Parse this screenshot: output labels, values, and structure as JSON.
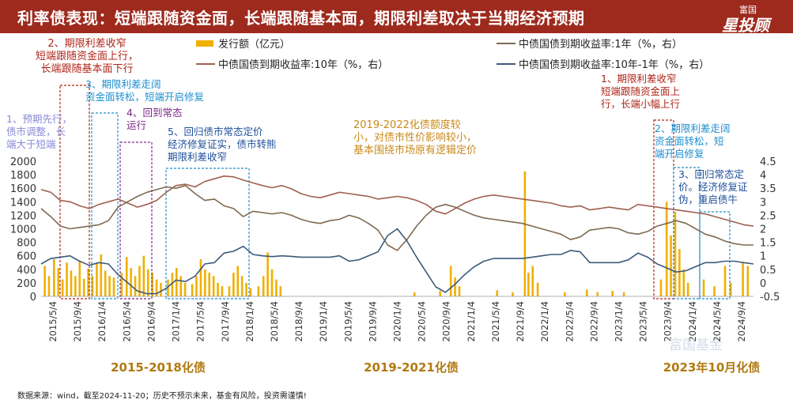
{
  "header": {
    "title": "利率债表现：短端跟随资金面，长端跟随基本面，期限利差取决于当期经济预期",
    "logo_top": "富国",
    "logo_main": "星投顾"
  },
  "source": "数据来源：wind，截至2024-11-20；历史不预示未来，基金有风险，投资需谨慎!",
  "chart_data": {
    "type": "bar+line",
    "legend": [
      {
        "name": "发行额（亿元）",
        "color": "#f0b000",
        "kind": "bar"
      },
      {
        "name": "中债国债到期收益率:1年（%，右）",
        "color": "#7f6a52",
        "kind": "line"
      },
      {
        "name": "中债国债到期收益率:10年（%，右）",
        "color": "#a06050",
        "kind": "line"
      },
      {
        "name": "中债国债到期收益率:10年-1年（%，右）",
        "color": "#3c5a7a",
        "kind": "line"
      }
    ],
    "x_ticks": [
      "2015/5/4",
      "2015/9/4",
      "2016/1/4",
      "2016/5/4",
      "2016/9/4",
      "2017/1/4",
      "2017/5/4",
      "2017/9/4",
      "2018/1/4",
      "2018/5/4",
      "2018/9/4",
      "2019/1/4",
      "2019/5/4",
      "2019/9/4",
      "2020/1/4",
      "2020/5/4",
      "2020/9/4",
      "2021/1/4",
      "2021/5/4",
      "2021/9/4",
      "2022/1/4",
      "2022/5/4",
      "2022/9/4",
      "2023/1/4",
      "2023/5/4",
      "2023/9/4",
      "2024/1/4",
      "2024/5/4",
      "2024/9/4"
    ],
    "y_left": {
      "min": 0,
      "max": 2000,
      "ticks": [
        0,
        200,
        400,
        600,
        800,
        1000,
        1200,
        1400,
        1600,
        1800,
        2000
      ]
    },
    "y_right": {
      "min": -0.5,
      "max": 4.5,
      "ticks": [
        "-0.5",
        "0",
        "0.5",
        "1",
        "1.5",
        "2",
        "2.5",
        "3",
        "3.5",
        "4",
        "4.5"
      ]
    },
    "series": {
      "y10": [
        3.45,
        3.35,
        3.05,
        3.0,
        2.85,
        2.75,
        2.9,
        3.0,
        3.1,
        2.95,
        2.8,
        2.9,
        3.05,
        3.35,
        3.6,
        3.65,
        3.55,
        3.75,
        3.85,
        3.95,
        3.92,
        3.8,
        3.7,
        3.6,
        3.52,
        3.6,
        3.48,
        3.3,
        3.2,
        3.15,
        3.25,
        3.35,
        3.3,
        3.25,
        3.2,
        3.1,
        3.15,
        3.2,
        3.15,
        3.05,
        2.9,
        2.65,
        2.55,
        2.75,
        2.95,
        3.1,
        3.2,
        3.25,
        3.2,
        3.15,
        3.1,
        3.05,
        3.0,
        2.95,
        2.85,
        2.8,
        2.85,
        2.7,
        2.75,
        2.8,
        2.75,
        2.7,
        2.9,
        2.85,
        2.8,
        2.75,
        2.7,
        2.65,
        2.6,
        2.55,
        2.45,
        2.35,
        2.25,
        2.15,
        2.1
      ],
      "y1": [
        2.75,
        2.45,
        2.1,
        2.0,
        2.05,
        2.1,
        2.15,
        2.3,
        2.8,
        3.0,
        3.2,
        3.35,
        3.45,
        3.55,
        3.5,
        3.6,
        3.3,
        3.05,
        3.1,
        2.85,
        2.75,
        2.45,
        2.65,
        2.6,
        2.55,
        2.6,
        2.5,
        2.35,
        2.25,
        2.2,
        2.3,
        2.35,
        2.5,
        2.4,
        2.2,
        1.95,
        1.4,
        1.2,
        1.6,
        2.1,
        2.5,
        2.8,
        2.9,
        2.8,
        2.65,
        2.5,
        2.4,
        2.35,
        2.3,
        2.25,
        2.2,
        2.1,
        2.0,
        1.9,
        1.8,
        1.6,
        1.7,
        1.95,
        2.0,
        2.05,
        2.0,
        1.85,
        1.8,
        1.9,
        2.1,
        2.2,
        2.3,
        2.2,
        2.0,
        1.8,
        1.7,
        1.55,
        1.45,
        1.4,
        1.4
      ],
      "spread": [
        0.7,
        0.9,
        0.95,
        1.0,
        0.8,
        0.65,
        0.75,
        0.7,
        0.3,
        0.0,
        -0.3,
        -0.4,
        -0.4,
        -0.2,
        0.1,
        0.05,
        0.25,
        0.7,
        0.75,
        1.1,
        1.17,
        1.35,
        1.05,
        1.0,
        0.97,
        1.0,
        0.98,
        0.95,
        0.95,
        0.95,
        0.95,
        1.0,
        0.8,
        0.85,
        1.0,
        1.15,
        1.75,
        2.0,
        1.55,
        0.95,
        0.4,
        -0.15,
        -0.35,
        -0.05,
        0.3,
        0.6,
        0.8,
        0.9,
        0.9,
        0.9,
        0.9,
        0.95,
        1.0,
        1.05,
        1.05,
        1.2,
        1.15,
        0.75,
        0.75,
        0.75,
        0.75,
        0.85,
        1.1,
        0.95,
        0.7,
        0.55,
        0.4,
        0.45,
        0.6,
        0.75,
        0.75,
        0.8,
        0.8,
        0.75,
        0.7
      ]
    },
    "issuance_bars": [
      {
        "t": 0.005,
        "v": 450
      },
      {
        "t": 0.011,
        "v": 300
      },
      {
        "t": 0.018,
        "v": 550
      },
      {
        "t": 0.024,
        "v": 420
      },
      {
        "t": 0.03,
        "v": 250
      },
      {
        "t": 0.036,
        "v": 500
      },
      {
        "t": 0.042,
        "v": 380
      },
      {
        "t": 0.048,
        "v": 300
      },
      {
        "t": 0.054,
        "v": 520
      },
      {
        "t": 0.06,
        "v": 260
      },
      {
        "t": 0.066,
        "v": 410
      },
      {
        "t": 0.072,
        "v": 300
      },
      {
        "t": 0.078,
        "v": 500
      },
      {
        "t": 0.084,
        "v": 620
      },
      {
        "t": 0.09,
        "v": 380
      },
      {
        "t": 0.096,
        "v": 300
      },
      {
        "t": 0.102,
        "v": 280
      },
      {
        "t": 0.113,
        "v": 350
      },
      {
        "t": 0.12,
        "v": 580
      },
      {
        "t": 0.126,
        "v": 420
      },
      {
        "t": 0.132,
        "v": 300
      },
      {
        "t": 0.138,
        "v": 450
      },
      {
        "t": 0.144,
        "v": 600
      },
      {
        "t": 0.15,
        "v": 400
      },
      {
        "t": 0.156,
        "v": 350
      },
      {
        "t": 0.162,
        "v": 250
      },
      {
        "t": 0.168,
        "v": 200
      },
      {
        "t": 0.178,
        "v": 250
      },
      {
        "t": 0.184,
        "v": 350
      },
      {
        "t": 0.19,
        "v": 420
      },
      {
        "t": 0.196,
        "v": 300
      },
      {
        "t": 0.202,
        "v": 200
      },
      {
        "t": 0.212,
        "v": 180
      },
      {
        "t": 0.218,
        "v": 300
      },
      {
        "t": 0.224,
        "v": 550
      },
      {
        "t": 0.23,
        "v": 400
      },
      {
        "t": 0.236,
        "v": 350
      },
      {
        "t": 0.242,
        "v": 300
      },
      {
        "t": 0.248,
        "v": 200
      },
      {
        "t": 0.254,
        "v": 150
      },
      {
        "t": 0.264,
        "v": 150
      },
      {
        "t": 0.27,
        "v": 350
      },
      {
        "t": 0.276,
        "v": 450
      },
      {
        "t": 0.282,
        "v": 300
      },
      {
        "t": 0.288,
        "v": 200
      },
      {
        "t": 0.294,
        "v": 120
      },
      {
        "t": 0.305,
        "v": 150
      },
      {
        "t": 0.312,
        "v": 300
      },
      {
        "t": 0.318,
        "v": 650
      },
      {
        "t": 0.324,
        "v": 400
      },
      {
        "t": 0.33,
        "v": 250
      },
      {
        "t": 0.336,
        "v": 150
      },
      {
        "t": 0.524,
        "v": 60
      },
      {
        "t": 0.56,
        "v": 80
      },
      {
        "t": 0.575,
        "v": 450
      },
      {
        "t": 0.581,
        "v": 280
      },
      {
        "t": 0.587,
        "v": 150
      },
      {
        "t": 0.64,
        "v": 90
      },
      {
        "t": 0.662,
        "v": 60
      },
      {
        "t": 0.679,
        "v": 1850
      },
      {
        "t": 0.684,
        "v": 350
      },
      {
        "t": 0.69,
        "v": 450
      },
      {
        "t": 0.697,
        "v": 200
      },
      {
        "t": 0.735,
        "v": 60
      },
      {
        "t": 0.766,
        "v": 100
      },
      {
        "t": 0.781,
        "v": 60
      },
      {
        "t": 0.802,
        "v": 80
      },
      {
        "t": 0.818,
        "v": 60
      },
      {
        "t": 0.87,
        "v": 250
      },
      {
        "t": 0.878,
        "v": 1400
      },
      {
        "t": 0.884,
        "v": 900
      },
      {
        "t": 0.89,
        "v": 1250
      },
      {
        "t": 0.896,
        "v": 700
      },
      {
        "t": 0.902,
        "v": 400
      },
      {
        "t": 0.908,
        "v": 200
      },
      {
        "t": 0.93,
        "v": 250
      },
      {
        "t": 0.945,
        "v": 150
      },
      {
        "t": 0.96,
        "v": 450
      },
      {
        "t": 0.968,
        "v": 200
      },
      {
        "t": 0.985,
        "v": 500
      },
      {
        "t": 0.992,
        "v": 450
      }
    ],
    "annotations": [
      {
        "text": [
          "2、期限利差收窄",
          "短端跟随资金面上行，",
          "长端跟随基本面下行"
        ],
        "color": "#b0251a",
        "pos": "n1"
      },
      {
        "text": [
          "3、期限利差走阔",
          "资金面转松，短端开启修复"
        ],
        "color": "#1e8fd0",
        "pos": "n2"
      },
      {
        "text": [
          "1、预期先行，",
          "债市调整，长",
          "端大于短端"
        ],
        "color": "#8a8ad8",
        "pos": "n3"
      },
      {
        "text": [
          "4、回到常态",
          "运行"
        ],
        "color": "#7a2a86",
        "pos": "n4"
      },
      {
        "text": [
          "5、回归债市常态定价",
          "经济修复证实，债市转熊",
          "期限利差收窄"
        ],
        "color": "#1f4f9a",
        "pos": "n5"
      },
      {
        "text": [
          "2019-2022化债额度较",
          "小，对债市性价影响较小，",
          "基本围绕市场原有逻辑定价"
        ],
        "color": "#c98a1a",
        "pos": "n6"
      },
      {
        "text": [
          "1、期限利差收窄",
          "短端跟随资金面上",
          "行，长端小幅上行"
        ],
        "color": "#b0251a",
        "pos": "n7"
      },
      {
        "text": [
          "2、期限利差走阔",
          "资金面转松，短",
          "端开启修复"
        ],
        "color": "#1e8fd0",
        "pos": "n8"
      },
      {
        "text": [
          "3、回归常态定",
          "价。经济修复证",
          "伪，重启债牛"
        ],
        "color": "#1f4f9a",
        "pos": "n9"
      }
    ],
    "period_labels": [
      "2015-2018化债",
      "2019-2021化债",
      "2023年10月化债"
    ],
    "watermark": "富国基金"
  }
}
